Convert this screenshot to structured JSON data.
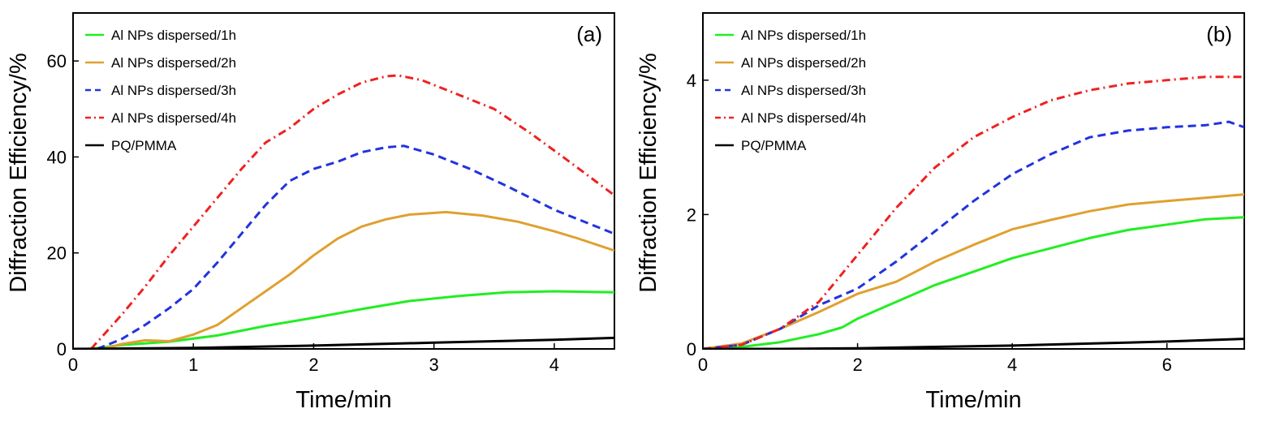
{
  "chart_data": [
    {
      "type": "line",
      "panel_label": "(a)",
      "xlabel": "Time/min",
      "ylabel": "Diffraction Efficiency/%",
      "xlim": [
        0,
        4.5
      ],
      "ylim": [
        0,
        70
      ],
      "xticks": [
        0,
        1,
        2,
        3,
        4
      ],
      "yticks": [
        0,
        20,
        40,
        60
      ],
      "grid": false,
      "legend_position": "top-left",
      "series": [
        {
          "name": "Al NPs dispersed/1h",
          "color": "#22ee22",
          "dash": "solid",
          "x": [
            0.15,
            0.4,
            0.8,
            1.2,
            1.6,
            2.0,
            2.4,
            2.8,
            3.2,
            3.6,
            4.0,
            4.5
          ],
          "y": [
            0,
            0.8,
            1.5,
            2.8,
            4.8,
            6.5,
            8.3,
            10.0,
            11.0,
            11.8,
            12.0,
            11.8
          ]
        },
        {
          "name": "Al NPs dispersed/2h",
          "color": "#e0a030",
          "dash": "solid",
          "x": [
            0.25,
            0.4,
            0.6,
            0.8,
            1.0,
            1.2,
            1.4,
            1.6,
            1.8,
            2.0,
            2.2,
            2.4,
            2.6,
            2.8,
            3.1,
            3.4,
            3.7,
            4.0,
            4.2,
            4.5
          ],
          "y": [
            0,
            1.0,
            1.8,
            1.6,
            3.0,
            5.0,
            8.5,
            12.0,
            15.5,
            19.5,
            23.0,
            25.5,
            27.0,
            28.0,
            28.5,
            27.8,
            26.5,
            24.5,
            23.0,
            20.5
          ]
        },
        {
          "name": "Al NPs dispersed/3h",
          "color": "#2233dd",
          "dash": "dashed",
          "x": [
            0.2,
            0.4,
            0.6,
            0.8,
            1.0,
            1.2,
            1.4,
            1.6,
            1.8,
            2.0,
            2.2,
            2.4,
            2.6,
            2.75,
            3.0,
            3.3,
            3.6,
            4.0,
            4.5
          ],
          "y": [
            0,
            2.0,
            5.0,
            8.5,
            12.5,
            18.0,
            24.0,
            30.0,
            35.0,
            37.5,
            39.0,
            41.0,
            42.0,
            42.3,
            40.5,
            37.5,
            34.0,
            29.0,
            24.0
          ]
        },
        {
          "name": "Al NPs dispersed/4h",
          "color": "#ee2222",
          "dash": "dashdot",
          "x": [
            0.15,
            0.4,
            0.6,
            0.8,
            1.0,
            1.2,
            1.4,
            1.6,
            1.8,
            2.0,
            2.2,
            2.4,
            2.6,
            2.7,
            2.9,
            3.2,
            3.5,
            3.8,
            4.1,
            4.5
          ],
          "y": [
            0,
            7.0,
            13.0,
            19.5,
            25.5,
            31.5,
            37.5,
            43.0,
            46.0,
            50.0,
            53.0,
            55.5,
            56.8,
            57.0,
            56.0,
            53.0,
            50.0,
            45.0,
            39.5,
            32.0
          ]
        },
        {
          "name": "PQ/PMMA",
          "color": "#000000",
          "dash": "solid",
          "x": [
            0,
            1,
            2,
            3,
            4,
            4.5
          ],
          "y": [
            0,
            0.2,
            0.7,
            1.3,
            1.9,
            2.3
          ]
        }
      ]
    },
    {
      "type": "line",
      "panel_label": "(b)",
      "xlabel": "Time/min",
      "ylabel": "Diffraction Efficiency/%",
      "xlim": [
        0,
        7
      ],
      "ylim": [
        0,
        5
      ],
      "xticks": [
        0,
        2,
        4,
        6
      ],
      "yticks": [
        0,
        2,
        4
      ],
      "grid": false,
      "legend_position": "top-left",
      "series": [
        {
          "name": "Al NPs dispersed/1h",
          "color": "#22ee22",
          "dash": "solid",
          "x": [
            0,
            0.5,
            1.0,
            1.5,
            1.8,
            2.0,
            2.5,
            3.0,
            3.5,
            4.0,
            4.5,
            5.0,
            5.5,
            6.0,
            6.5,
            7.0
          ],
          "y": [
            0,
            0.03,
            0.1,
            0.22,
            0.32,
            0.45,
            0.7,
            0.95,
            1.15,
            1.35,
            1.5,
            1.65,
            1.77,
            1.85,
            1.93,
            1.96
          ]
        },
        {
          "name": "Al NPs dispersed/2h",
          "color": "#e0a030",
          "dash": "solid",
          "x": [
            0,
            0.5,
            1.0,
            1.5,
            2.0,
            2.5,
            3.0,
            3.5,
            4.0,
            4.5,
            5.0,
            5.5,
            6.0,
            6.5,
            7.0
          ],
          "y": [
            0,
            0.08,
            0.3,
            0.55,
            0.82,
            1.0,
            1.3,
            1.55,
            1.78,
            1.92,
            2.05,
            2.15,
            2.2,
            2.25,
            2.3
          ]
        },
        {
          "name": "Al NPs dispersed/3h",
          "color": "#2233dd",
          "dash": "dashed",
          "x": [
            0,
            0.5,
            1.0,
            1.5,
            2.0,
            2.5,
            3.0,
            3.5,
            4.0,
            4.5,
            5.0,
            5.5,
            6.0,
            6.5,
            6.8,
            7.0
          ],
          "y": [
            0,
            0.06,
            0.3,
            0.65,
            0.9,
            1.3,
            1.75,
            2.2,
            2.6,
            2.9,
            3.15,
            3.25,
            3.3,
            3.33,
            3.38,
            3.3
          ]
        },
        {
          "name": "Al NPs dispersed/4h",
          "color": "#ee2222",
          "dash": "dashdot",
          "x": [
            0,
            0.5,
            1.0,
            1.5,
            2.0,
            2.5,
            3.0,
            3.5,
            4.0,
            4.5,
            5.0,
            5.5,
            6.0,
            6.5,
            7.0
          ],
          "y": [
            0,
            0.06,
            0.3,
            0.7,
            1.4,
            2.1,
            2.7,
            3.15,
            3.45,
            3.7,
            3.85,
            3.95,
            4.0,
            4.05,
            4.05
          ]
        },
        {
          "name": "PQ/PMMA",
          "color": "#000000",
          "dash": "solid",
          "x": [
            0,
            1,
            2,
            3,
            4,
            5,
            6,
            7
          ],
          "y": [
            0,
            0.0,
            0.01,
            0.03,
            0.05,
            0.08,
            0.11,
            0.15
          ]
        }
      ]
    }
  ]
}
